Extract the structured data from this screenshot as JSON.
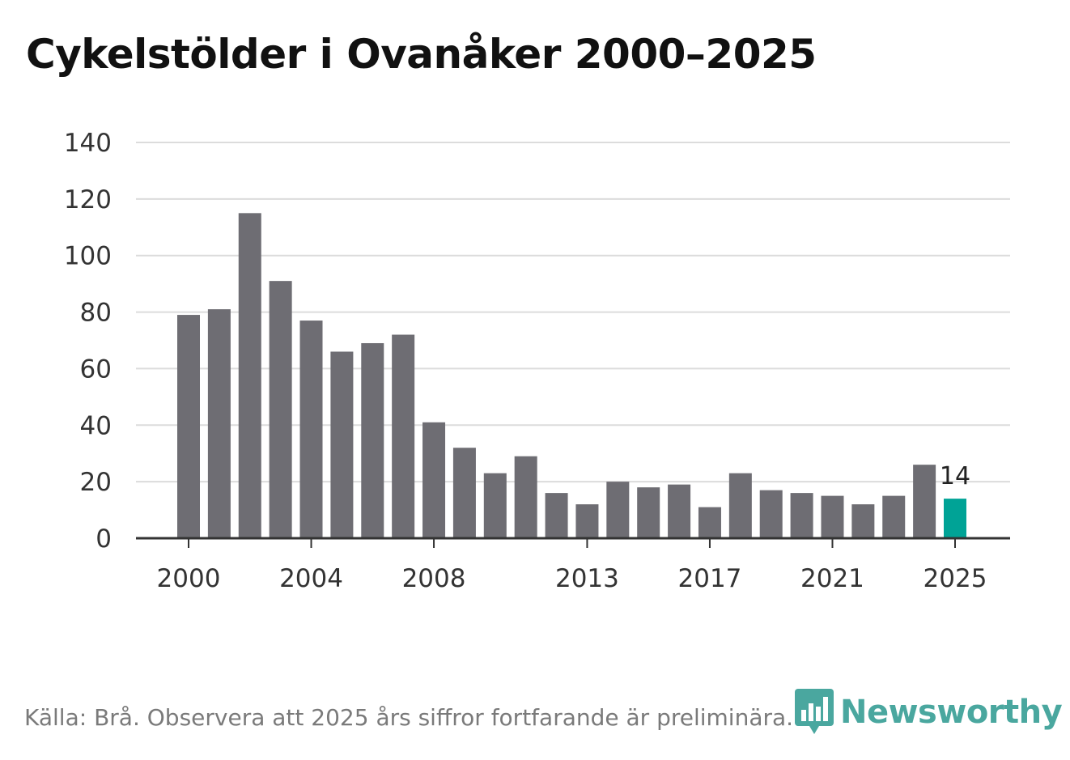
{
  "title": "Cykelstölder i Ovanåker 2000–2025",
  "footer": {
    "source": "Källa: Brå. Observera att 2025 års siffror fortfarande är preliminära."
  },
  "brand": {
    "name": "Newsworthy",
    "icon": "newsworthy-logo-icon",
    "color": "#4aa79f"
  },
  "colors": {
    "bar": "#6e6d73",
    "highlight": "#00a396",
    "grid": "#dcdcdc",
    "axis": "#333333"
  },
  "chart_data": {
    "type": "bar",
    "title": "Cykelstölder i Ovanåker 2000–2025",
    "xlabel": "",
    "ylabel": "",
    "categories": [
      "2000",
      "2001",
      "2002",
      "2003",
      "2004",
      "2005",
      "2006",
      "2007",
      "2008",
      "2009",
      "2010",
      "2011",
      "2012",
      "2013",
      "2014",
      "2015",
      "2016",
      "2017",
      "2018",
      "2019",
      "2020",
      "2021",
      "2022",
      "2023",
      "2024",
      "2025"
    ],
    "values": [
      79,
      81,
      115,
      91,
      77,
      66,
      69,
      72,
      41,
      32,
      23,
      29,
      16,
      12,
      20,
      18,
      19,
      11,
      23,
      17,
      16,
      15,
      12,
      15,
      26,
      14
    ],
    "ylim": [
      0,
      140
    ],
    "yticks": [
      0,
      20,
      40,
      60,
      80,
      100,
      120,
      140
    ],
    "xtick_labels": [
      "2000",
      "2004",
      "2008",
      "2013",
      "2017",
      "2021",
      "2025"
    ],
    "highlight_category": "2025",
    "annotations": [
      {
        "category": "2025",
        "text": "14"
      }
    ],
    "grid": true
  }
}
